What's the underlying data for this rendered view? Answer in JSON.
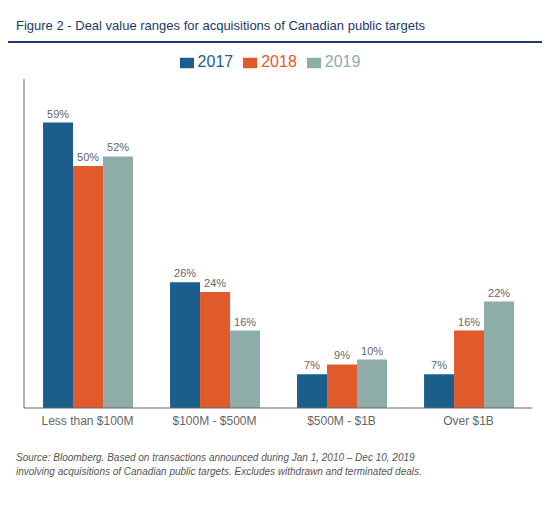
{
  "chart_data": {
    "type": "bar",
    "title": "Figure 2 - Deal value ranges for acquisitions of Canadian public targets",
    "categories": [
      "Less than $100M",
      "$100M - $500M",
      "$500M - $1B",
      "Over $1B"
    ],
    "series": [
      {
        "name": "2017",
        "color": "#1B5E8C",
        "values": [
          59,
          26,
          7,
          7
        ],
        "value_labels": [
          "59%",
          "26%",
          "7%",
          "7%"
        ]
      },
      {
        "name": "2018",
        "color": "#E05A2B",
        "values": [
          50,
          24,
          9,
          16
        ],
        "value_labels": [
          "50%",
          "24%",
          "9%",
          "16%"
        ]
      },
      {
        "name": "2019",
        "color": "#8FADA8",
        "values": [
          52,
          16,
          10,
          22
        ],
        "value_labels": [
          "52%",
          "16%",
          "10%",
          "22%"
        ]
      }
    ],
    "ylim": [
      0,
      68
    ],
    "grid": false,
    "legend": "top",
    "data_labels": true,
    "tick_labels": "x",
    "annotations": [
      "Source: Bloomberg. Based on transactions announced during Jan 1, 2010 – Dec 10, 2019\ninvolving acquisitions of Canadian public targets. Excludes withdrawn and terminated deals."
    ]
  }
}
